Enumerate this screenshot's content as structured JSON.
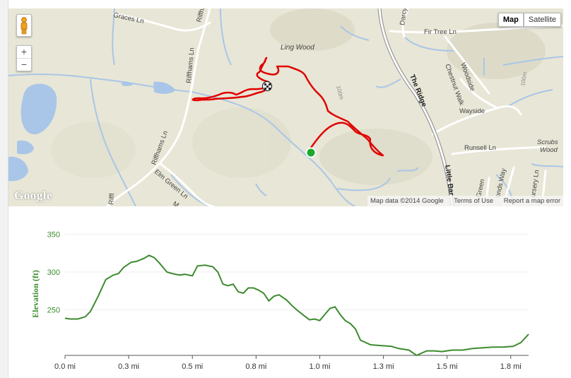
{
  "map": {
    "type_buttons": [
      "Map",
      "Satellite"
    ],
    "zoom_in": "+",
    "zoom_out": "−",
    "logo": "Google",
    "attribution": {
      "data": "Map data ©2014 Google",
      "terms": "Terms of Use",
      "report": "Report a map error"
    },
    "labels": {
      "graces": "Graces Ln",
      "riffhams_top": "Riffhams",
      "riffhams_ln": "Riffhams Ln",
      "riffhams_ln2": "Riffhams Ln",
      "darcy": "Darcy Rise",
      "fir_tree": "Fir Tree Ln",
      "ling_wood": "Ling Wood",
      "the_ridge": "The Ridge",
      "chestnut": "Chestnut Walk",
      "woodside": "Woodside",
      "wayside": "Wayside",
      "m100a": "100m",
      "m100b": "100m",
      "runsell": "Runsell Ln",
      "scrubs": "Scrubs",
      "scrubs_wood": "Wood",
      "little_bar": "Little Bar",
      "elm_green": "Elm Green Ln",
      "green": "Green",
      "onds_way": "onds Way",
      "ursery": "ursery Ln",
      "m_ways": "M...ays",
      "riffl": "Riffl"
    },
    "colors": {
      "route": "#e00000",
      "start_marker": "#1ea82a",
      "water": "#a9c6e8",
      "roads": "#ffffff"
    }
  },
  "chart_data": {
    "type": "line",
    "ylabel": "Elevation (ft)",
    "xlabel": "",
    "y_ticks": [
      250,
      300,
      350
    ],
    "x_tick_labels": [
      "0.0 mi",
      "0.3 mi",
      "0.5 mi",
      "0.8 mi",
      "1.0 mi",
      "1.3 mi",
      "1.5 mi",
      "1.8 mi"
    ],
    "x_tick_values": [
      0.0,
      0.25,
      0.5,
      0.75,
      1.0,
      1.25,
      1.5,
      1.75
    ],
    "xlim": [
      0,
      1.82
    ],
    "ylim": [
      190,
      355
    ],
    "color": "#3c8b2e",
    "series": [
      {
        "x": [
          0.0,
          0.02,
          0.05,
          0.08,
          0.1,
          0.13,
          0.16,
          0.19,
          0.21,
          0.23,
          0.26,
          0.28,
          0.31,
          0.33,
          0.35,
          0.37,
          0.4,
          0.42,
          0.45,
          0.47,
          0.5,
          0.52,
          0.55,
          0.58,
          0.6,
          0.62,
          0.64,
          0.66,
          0.68,
          0.7,
          0.72,
          0.74,
          0.76,
          0.78,
          0.8,
          0.82,
          0.84,
          0.87,
          0.89,
          0.91,
          0.94,
          0.96,
          0.98,
          1.0,
          1.02,
          1.04,
          1.06,
          1.08,
          1.1,
          1.12,
          1.14,
          1.16,
          1.2,
          1.24,
          1.28,
          1.31,
          1.35,
          1.38,
          1.4,
          1.42,
          1.45,
          1.48,
          1.52,
          1.56,
          1.6,
          1.64,
          1.68,
          1.72,
          1.76,
          1.79,
          1.82
        ],
        "values": [
          239,
          238,
          238,
          241,
          248,
          268,
          290,
          296,
          298,
          306,
          313,
          314,
          318,
          322,
          319,
          312,
          300,
          298,
          296,
          297,
          295,
          308,
          309,
          307,
          300,
          284,
          282,
          284,
          274,
          272,
          279,
          279,
          276,
          272,
          262,
          268,
          270,
          263,
          256,
          250,
          242,
          237,
          238,
          236,
          244,
          252,
          254,
          244,
          236,
          232,
          225,
          210,
          204,
          203,
          202,
          199,
          197,
          190,
          193,
          196,
          196,
          195,
          197,
          197,
          199,
          200,
          201,
          201,
          202,
          207,
          218
        ]
      }
    ]
  }
}
